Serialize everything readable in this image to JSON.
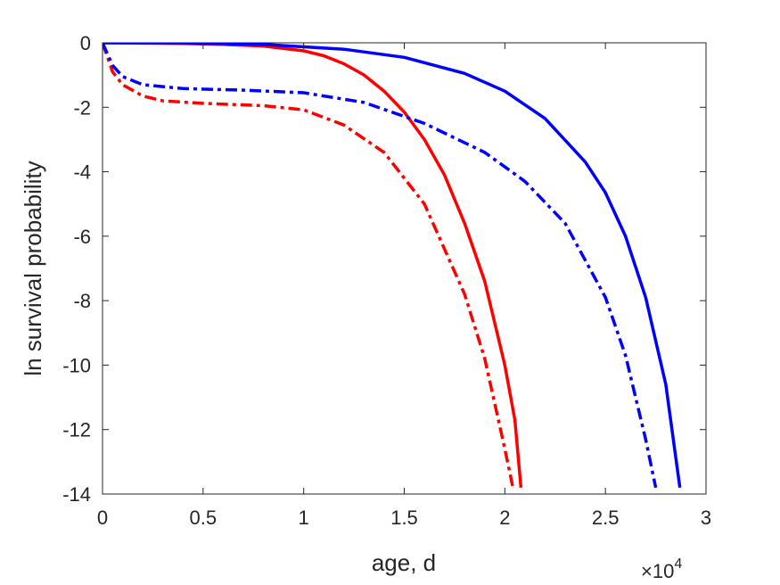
{
  "chart_data": {
    "type": "line",
    "xlabel": "age, d",
    "ylabel": "ln survival probability",
    "x_multiplier": {
      "base": "×10",
      "exponent": "4"
    },
    "xlim": [
      0,
      3
    ],
    "ylim": [
      -14,
      0
    ],
    "xticks": [
      0,
      0.5,
      1,
      1.5,
      2,
      2.5,
      3
    ],
    "xtick_labels": [
      "0",
      "0.5",
      "1",
      "1.5",
      "2",
      "2.5",
      "3"
    ],
    "yticks": [
      0,
      -2,
      -4,
      -6,
      -8,
      -10,
      -12,
      -14
    ],
    "ytick_labels": [
      "0",
      "-2",
      "-4",
      "-6",
      "-8",
      "-10",
      "-12",
      "-14"
    ],
    "grid": false,
    "series": [
      {
        "color": "#ff0000",
        "style": "solid",
        "x": [
          0,
          0.2,
          0.4,
          0.6,
          0.8,
          1.0,
          1.1,
          1.2,
          1.3,
          1.4,
          1.5,
          1.6,
          1.7,
          1.8,
          1.9,
          2.0,
          2.05,
          2.08
        ],
        "y": [
          0,
          -0.01,
          -0.02,
          -0.05,
          -0.1,
          -0.25,
          -0.4,
          -0.65,
          -1.0,
          -1.5,
          -2.15,
          -3.0,
          -4.1,
          -5.6,
          -7.4,
          -10.0,
          -11.7,
          -13.8
        ]
      },
      {
        "color": "#0000ff",
        "style": "solid",
        "x": [
          0,
          0.4,
          0.8,
          1.2,
          1.5,
          1.8,
          2.0,
          2.2,
          2.4,
          2.5,
          2.6,
          2.7,
          2.8,
          2.87
        ],
        "y": [
          0,
          -0.01,
          -0.05,
          -0.2,
          -0.45,
          -0.95,
          -1.5,
          -2.35,
          -3.7,
          -4.65,
          -6.0,
          -7.9,
          -10.6,
          -13.8
        ]
      },
      {
        "color": "#ff0000",
        "style": "dashdot",
        "x": [
          0,
          0.05,
          0.1,
          0.2,
          0.3,
          0.5,
          0.8,
          1.0,
          1.2,
          1.4,
          1.6,
          1.8,
          1.9,
          2.0,
          2.04
        ],
        "y": [
          0,
          -0.9,
          -1.3,
          -1.65,
          -1.8,
          -1.88,
          -1.95,
          -2.08,
          -2.55,
          -3.4,
          -5.0,
          -7.8,
          -9.8,
          -12.6,
          -13.8
        ]
      },
      {
        "color": "#0000ff",
        "style": "dashdot",
        "x": [
          0,
          0.05,
          0.1,
          0.2,
          0.4,
          0.7,
          1.0,
          1.3,
          1.6,
          1.9,
          2.1,
          2.3,
          2.5,
          2.6,
          2.7,
          2.75
        ],
        "y": [
          0,
          -0.7,
          -1.05,
          -1.3,
          -1.42,
          -1.47,
          -1.55,
          -1.85,
          -2.5,
          -3.4,
          -4.3,
          -5.6,
          -7.9,
          -9.7,
          -12.3,
          -13.8
        ]
      }
    ]
  }
}
